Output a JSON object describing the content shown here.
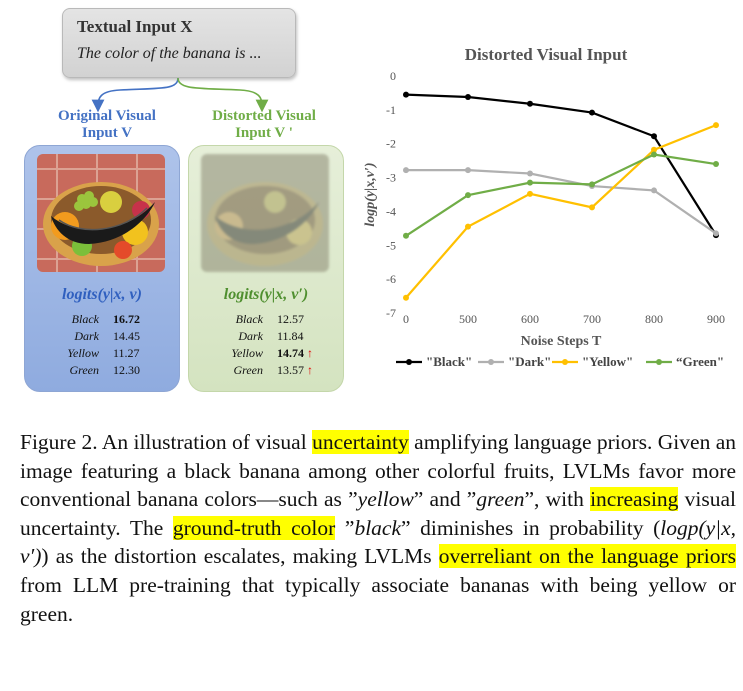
{
  "input_box": {
    "title": "Textual Input X",
    "sentence": "The color of the banana is ..."
  },
  "original": {
    "heading_line1": "Original Visual",
    "heading_line2": "Input V",
    "logits_title": "logits(y|x, v)",
    "rows": [
      {
        "word": "Black",
        "value": "16.72",
        "bold": true
      },
      {
        "word": "Dark",
        "value": "14.45"
      },
      {
        "word": "Yellow",
        "value": "11.27"
      },
      {
        "word": "Green",
        "value": "12.30"
      }
    ]
  },
  "distorted": {
    "heading_line1": "Distorted Visual",
    "heading_line2": "Input V '",
    "logits_title": "logits(y|x, v′)",
    "rows": [
      {
        "word": "Black",
        "value": "12.57"
      },
      {
        "word": "Dark",
        "value": "11.84"
      },
      {
        "word": "Yellow",
        "value": "14.74",
        "bold": true,
        "arrow": "↑"
      },
      {
        "word": "Green",
        "value": "13.57",
        "arrow": "↑"
      }
    ]
  },
  "chart_data": {
    "type": "line",
    "title": "Distorted Visual Input",
    "xlabel": "Noise Steps T",
    "ylabel": "logp(y|x,v′)",
    "x": [
      0,
      500,
      600,
      700,
      800,
      900
    ],
    "ylim": [
      -7,
      0
    ],
    "yticks": [
      0,
      -1,
      -2,
      -3,
      -4,
      -5,
      -6,
      -7
    ],
    "grid": false,
    "legend_position": "bottom",
    "series": [
      {
        "name": "\"Black\"",
        "color": "#000000",
        "values": [
          -0.55,
          -0.62,
          -0.82,
          -1.08,
          -1.78,
          -4.7
        ]
      },
      {
        "name": "\"Dark\"",
        "color": "#b0b0b0",
        "values": [
          -2.78,
          -2.78,
          -2.88,
          -3.25,
          -3.38,
          -4.65
        ]
      },
      {
        "name": "\"Yellow\"",
        "color": "#ffc000",
        "values": [
          -6.55,
          -4.45,
          -3.48,
          -3.88,
          -2.18,
          -1.45
        ]
      },
      {
        "name": "“Green\"",
        "color": "#70ad47",
        "values": [
          -4.72,
          -3.52,
          -3.15,
          -3.2,
          -2.32,
          -2.6
        ]
      }
    ]
  },
  "caption": {
    "s1": "Figure 2. An illustration of visual ",
    "h1": "uncertainty",
    "s2": " amplifying language priors. Given an image featuring a black banana among other colorful fruits, LVLMs favor more conventional banana colors—such as ”",
    "i1": "yellow",
    "s3": "” and ”",
    "i2": "green",
    "s4": "”, with ",
    "h2": "increasing",
    "s5": " visual uncertainty. The ",
    "h3": "ground-truth color",
    "s6": " ”",
    "i3": "black",
    "s7": "” diminishes in probability (",
    "i4": "logp(y|x, v′)",
    "s8": ") as the distortion escalates, making LVLMs ",
    "h4": "overreliant on the language priors",
    "s9": " from LLM pre-training that typically associate bananas with being yellow or green."
  }
}
